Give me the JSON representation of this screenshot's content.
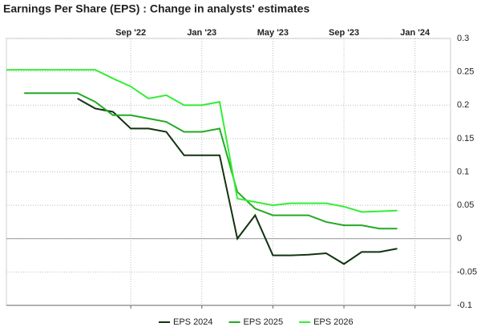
{
  "chart_data": {
    "type": "line",
    "title": "Earnings Per Share (EPS) : Change in analysts' estimates",
    "x": [
      "2022-02",
      "2022-03",
      "2022-04",
      "2022-05",
      "2022-06",
      "2022-07",
      "2022-08",
      "2022-09",
      "2022-10",
      "2022-11",
      "2022-12",
      "2023-01",
      "2023-02",
      "2023-03",
      "2023-04",
      "2023-05",
      "2023-06",
      "2023-07",
      "2023-08",
      "2023-09",
      "2023-10",
      "2023-11",
      "2023-12"
    ],
    "series": [
      {
        "name": "EPS 2024",
        "color": "#113311",
        "values": [
          null,
          null,
          null,
          null,
          0.21,
          0.195,
          0.19,
          0.165,
          0.165,
          0.16,
          0.125,
          0.125,
          0.125,
          0.0,
          0.035,
          -0.025,
          -0.025,
          -0.024,
          -0.022,
          -0.038,
          -0.02,
          -0.02,
          -0.015
        ]
      },
      {
        "name": "EPS 2025",
        "color": "#22aa22",
        "values": [
          null,
          0.218,
          0.218,
          0.218,
          0.218,
          0.205,
          0.185,
          0.185,
          0.18,
          0.175,
          0.16,
          0.16,
          0.165,
          0.07,
          0.045,
          0.035,
          0.035,
          0.035,
          0.025,
          0.02,
          0.02,
          0.015,
          0.015
        ]
      },
      {
        "name": "EPS 2026",
        "color": "#33ee33",
        "values": [
          0.253,
          0.253,
          0.253,
          0.253,
          0.253,
          0.253,
          0.24,
          0.228,
          0.21,
          0.215,
          0.2,
          0.2,
          0.205,
          0.06,
          0.055,
          0.05,
          0.053,
          0.053,
          0.053,
          0.048,
          0.04,
          0.041,
          0.042
        ]
      }
    ],
    "xlim": [
      "2022-02",
      "2024-03"
    ],
    "xticks": [
      {
        "value": "2022-09",
        "label": "Sep '22"
      },
      {
        "value": "2023-01",
        "label": "Jan '23"
      },
      {
        "value": "2023-05",
        "label": "May '23"
      },
      {
        "value": "2023-09",
        "label": "Sep '23"
      },
      {
        "value": "2024-01",
        "label": "Jan '24"
      }
    ],
    "ylim": [
      -0.1,
      0.3
    ],
    "yticks": [
      -0.1,
      -0.05,
      0,
      0.05,
      0.1,
      0.15,
      0.2,
      0.25,
      0.3
    ],
    "grid": true
  }
}
